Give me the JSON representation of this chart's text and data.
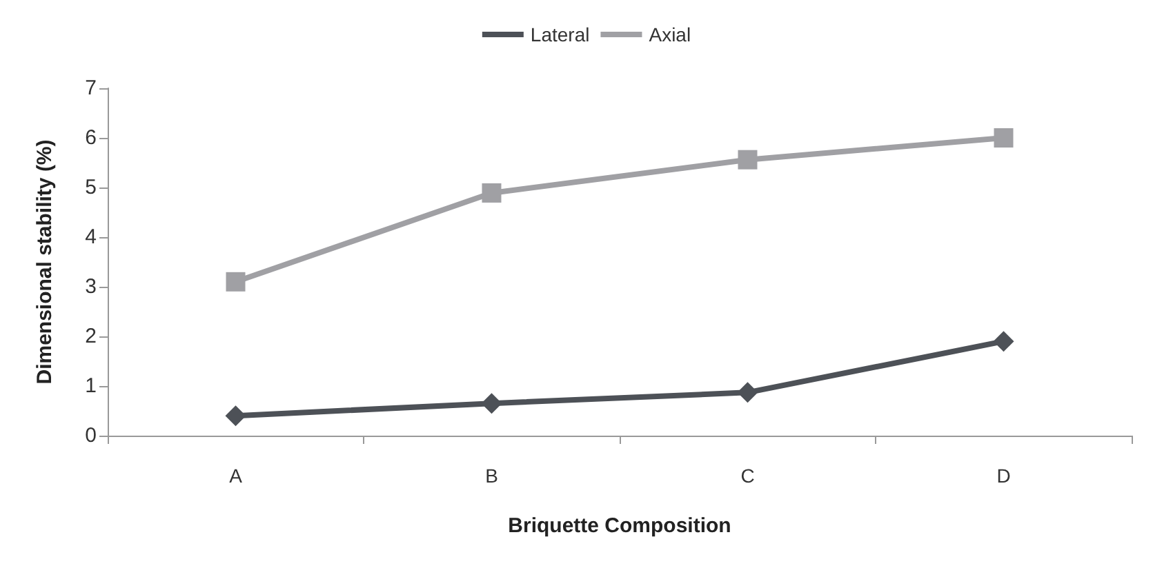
{
  "chart_data": {
    "type": "line",
    "xlabel": "Briquette Composition",
    "ylabel": "Dimensional stability (%)",
    "categories": [
      "A",
      "B",
      "C",
      "D"
    ],
    "series": [
      {
        "name": "Lateral",
        "color": "#4d5157",
        "marker": "diamond",
        "values": [
          0.4,
          0.65,
          0.87,
          1.9
        ]
      },
      {
        "name": "Axial",
        "color": "#a0a0a4",
        "marker": "square",
        "values": [
          3.1,
          4.89,
          5.56,
          6.0
        ]
      }
    ],
    "ylim": [
      0,
      7
    ],
    "yticks": [
      0,
      1,
      2,
      3,
      4,
      5,
      6,
      7
    ],
    "grid": false,
    "legend": "top",
    "line_style": "solid"
  }
}
